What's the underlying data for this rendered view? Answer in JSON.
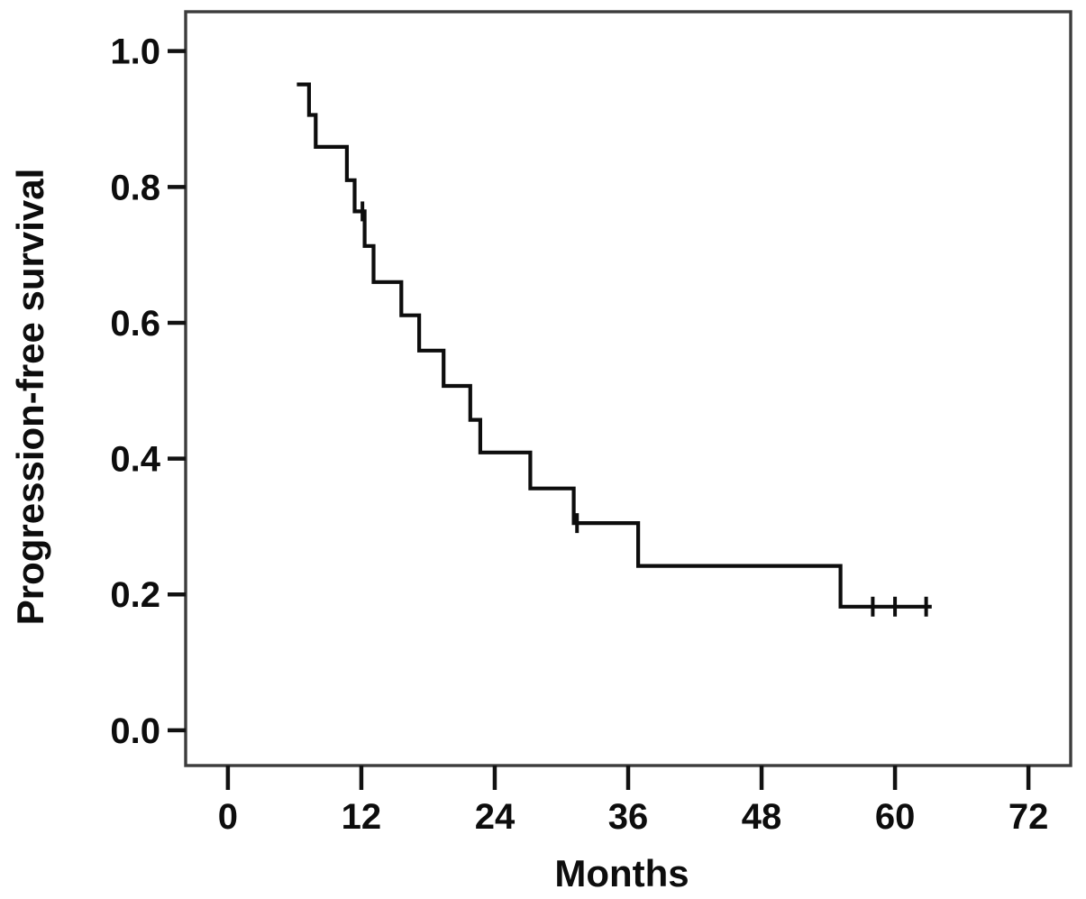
{
  "page": {
    "background": "#ffffff"
  },
  "chart_data": {
    "type": "line",
    "chart_kind": "kaplan-meier-step",
    "title": "",
    "xlabel": "Months",
    "ylabel": "Progression-free survival",
    "x_ticks": [
      0,
      12,
      24,
      36,
      48,
      60,
      72
    ],
    "y_ticks": [
      0.0,
      0.2,
      0.4,
      0.6,
      0.8,
      1.0
    ],
    "y_tick_decimals": 1,
    "xlim": [
      -3.8,
      75.8
    ],
    "ylim": [
      -0.052,
      1.058
    ],
    "grid": false,
    "legend": null,
    "line_color": "#0d0d0d",
    "border_color": "#3c3c3c",
    "tick_color": "#111111",
    "series": [
      {
        "name": "Progression-free survival",
        "draw": "step",
        "comment": "steps = [time_in_months, survival_level_reached_at_that_time]; curve starts at first point, holds each level until next time",
        "steps": [
          [
            6.2,
            0.951
          ],
          [
            7.3,
            0.906
          ],
          [
            7.9,
            0.859
          ],
          [
            10.7,
            0.81
          ],
          [
            11.4,
            0.764
          ],
          [
            12.3,
            0.713
          ],
          [
            13.1,
            0.66
          ],
          [
            15.6,
            0.611
          ],
          [
            17.2,
            0.559
          ],
          [
            19.4,
            0.507
          ],
          [
            21.8,
            0.457
          ],
          [
            22.7,
            0.409
          ],
          [
            27.2,
            0.356
          ],
          [
            31.1,
            0.305
          ],
          [
            36.9,
            0.242
          ],
          [
            55.1,
            0.182
          ]
        ],
        "end_x": 63.3,
        "censor_marks": [
          [
            12.1,
            0.764
          ],
          [
            31.4,
            0.305
          ],
          [
            58.0,
            0.182
          ],
          [
            60.0,
            0.182
          ],
          [
            62.8,
            0.182
          ]
        ]
      }
    ]
  }
}
